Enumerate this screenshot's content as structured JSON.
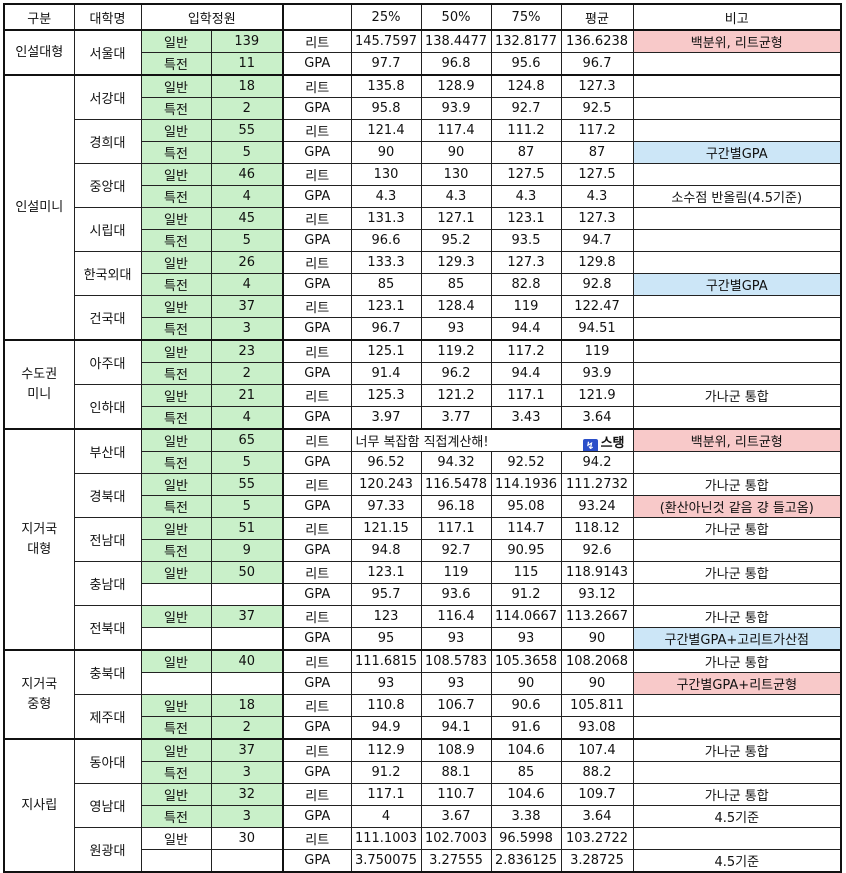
{
  "header": {
    "category": "구분",
    "university": "대학명",
    "quota": "입학정원",
    "blank": "",
    "p25": "25%",
    "p50": "50%",
    "p75": "75%",
    "avg": "평균",
    "note": "비고"
  },
  "colors": {
    "green": "#c9f0c9",
    "pink": "#f8c9c9",
    "blue": "#cce6f7",
    "logo": "#2b4fc9"
  },
  "merged_note": {
    "text": "너무 복잡함 직접계산해!",
    "logo_text": "스탱",
    "logo_icon": "logo-icon"
  },
  "groups": [
    {
      "name": "인설대형",
      "univs": [
        {
          "name": "서울대",
          "rows": [
            [
              "일반",
              "139",
              "리트",
              "145.7597",
              "138.4477",
              "132.8177",
              "136.6238",
              "백분위, 리트균형",
              "pink",
              true
            ],
            [
              "특전",
              "11",
              "GPA",
              "97.7",
              "96.8",
              "95.6",
              "96.7",
              "",
              "",
              true
            ]
          ]
        }
      ]
    },
    {
      "name": "인설미니",
      "univs": [
        {
          "name": "서강대",
          "rows": [
            [
              "일반",
              "18",
              "리트",
              "135.8",
              "128.9",
              "124.8",
              "127.3",
              "",
              "",
              true
            ],
            [
              "특전",
              "2",
              "GPA",
              "95.8",
              "93.9",
              "92.7",
              "92.5",
              "",
              "",
              true
            ]
          ]
        },
        {
          "name": "경희대",
          "rows": [
            [
              "일반",
              "55",
              "리트",
              "121.4",
              "117.4",
              "111.2",
              "117.2",
              "",
              "",
              true
            ],
            [
              "특전",
              "5",
              "GPA",
              "90",
              "90",
              "87",
              "87",
              "구간별GPA",
              "blue",
              true
            ]
          ]
        },
        {
          "name": "중앙대",
          "rows": [
            [
              "일반",
              "46",
              "리트",
              "130",
              "130",
              "127.5",
              "127.5",
              "",
              "",
              true
            ],
            [
              "특전",
              "4",
              "GPA",
              "4.3",
              "4.3",
              "4.3",
              "4.3",
              "소수점 반올림(4.5기준)",
              "",
              true
            ]
          ]
        },
        {
          "name": "시립대",
          "rows": [
            [
              "일반",
              "45",
              "리트",
              "131.3",
              "127.1",
              "123.1",
              "127.3",
              "",
              "",
              true
            ],
            [
              "특전",
              "5",
              "GPA",
              "96.6",
              "95.2",
              "93.5",
              "94.7",
              "",
              "",
              true
            ]
          ]
        },
        {
          "name": "한국외대",
          "rows": [
            [
              "일반",
              "26",
              "리트",
              "133.3",
              "129.3",
              "127.3",
              "129.8",
              "",
              "",
              true
            ],
            [
              "특전",
              "4",
              "GPA",
              "85",
              "85",
              "82.8",
              "92.8",
              "구간별GPA",
              "blue",
              true
            ]
          ]
        },
        {
          "name": "건국대",
          "rows": [
            [
              "일반",
              "37",
              "리트",
              "123.1",
              "128.4",
              "119",
              "122.47",
              "",
              "",
              true
            ],
            [
              "특전",
              "3",
              "GPA",
              "96.7",
              "93",
              "94.4",
              "94.51",
              "",
              "",
              true
            ]
          ]
        }
      ]
    },
    {
      "name": "수도권\n미니",
      "univs": [
        {
          "name": "아주대",
          "rows": [
            [
              "일반",
              "23",
              "리트",
              "125.1",
              "119.2",
              "117.2",
              "119",
              "",
              "",
              true
            ],
            [
              "특전",
              "2",
              "GPA",
              "91.4",
              "96.2",
              "94.4",
              "93.9",
              "",
              "",
              true
            ]
          ]
        },
        {
          "name": "인하대",
          "rows": [
            [
              "일반",
              "21",
              "리트",
              "125.3",
              "121.2",
              "117.1",
              "121.9",
              "가나군 통합",
              "",
              true
            ],
            [
              "특전",
              "4",
              "GPA",
              "3.97",
              "3.77",
              "3.43",
              "3.64",
              "",
              "",
              true
            ]
          ]
        }
      ]
    },
    {
      "name": "지거국\n대형",
      "univs": [
        {
          "name": "부산대",
          "rows": [
            [
              "일반",
              "65",
              "리트",
              "",
              "",
              "",
              "",
              "백분위, 리트균형",
              "pink",
              true,
              "merged"
            ],
            [
              "특전",
              "5",
              "GPA",
              "96.52",
              "94.32",
              "92.52",
              "94.2",
              "",
              "",
              true
            ]
          ]
        },
        {
          "name": "경북대",
          "rows": [
            [
              "일반",
              "55",
              "리트",
              "120.243",
              "116.5478",
              "114.1936",
              "111.2732",
              "가나군 통합",
              "",
              true
            ],
            [
              "특전",
              "5",
              "GPA",
              "97.33",
              "96.18",
              "95.08",
              "93.24",
              "(환산아닌것 같음 걍 들고옴)",
              "pink",
              true
            ]
          ]
        },
        {
          "name": "전남대",
          "rows": [
            [
              "일반",
              "51",
              "리트",
              "121.15",
              "117.1",
              "114.7",
              "118.12",
              "가나군 통합",
              "",
              true
            ],
            [
              "특전",
              "9",
              "GPA",
              "94.8",
              "92.7",
              "90.95",
              "92.6",
              "",
              "",
              true
            ]
          ]
        },
        {
          "name": "충남대",
          "rows": [
            [
              "일반",
              "50",
              "리트",
              "123.1",
              "119",
              "115",
              "118.9143",
              "가나군 통합",
              "",
              true
            ],
            [
              "",
              "",
              "GPA",
              "95.7",
              "93.6",
              "91.2",
              "93.12",
              "",
              "",
              false
            ]
          ]
        },
        {
          "name": "전북대",
          "rows": [
            [
              "일반",
              "37",
              "리트",
              "123",
              "116.4",
              "114.0667",
              "113.2667",
              "가나군 통합",
              "",
              true
            ],
            [
              "",
              "",
              "GPA",
              "95",
              "93",
              "93",
              "90",
              "구간별GPA+고리트가산점",
              "blue",
              false
            ]
          ]
        }
      ]
    },
    {
      "name": "지거국\n중형",
      "univs": [
        {
          "name": "충북대",
          "rows": [
            [
              "일반",
              "40",
              "리트",
              "111.6815",
              "108.5783",
              "105.3658",
              "108.2068",
              "가나군 통합",
              "",
              true
            ],
            [
              "",
              "",
              "GPA",
              "93",
              "93",
              "90",
              "90",
              "구간별GPA+리트균형",
              "pink",
              false
            ]
          ]
        },
        {
          "name": "제주대",
          "rows": [
            [
              "일반",
              "18",
              "리트",
              "110.8",
              "106.7",
              "90.6",
              "105.811",
              "",
              "",
              true
            ],
            [
              "특전",
              "2",
              "GPA",
              "94.9",
              "94.1",
              "91.6",
              "93.08",
              "",
              "",
              true
            ]
          ]
        }
      ]
    },
    {
      "name": "지사립",
      "univs": [
        {
          "name": "동아대",
          "rows": [
            [
              "일반",
              "37",
              "리트",
              "112.9",
              "108.9",
              "104.6",
              "107.4",
              "가나군 통합",
              "",
              true
            ],
            [
              "특전",
              "3",
              "GPA",
              "91.2",
              "88.1",
              "85",
              "88.2",
              "",
              "",
              true
            ]
          ]
        },
        {
          "name": "영남대",
          "rows": [
            [
              "일반",
              "32",
              "리트",
              "117.1",
              "110.7",
              "104.6",
              "109.7",
              "가나군 통합",
              "",
              true
            ],
            [
              "특전",
              "3",
              "GPA",
              "4",
              "3.67",
              "3.38",
              "3.64",
              "4.5기준",
              "",
              true
            ]
          ]
        },
        {
          "name": "원광대",
          "rows": [
            [
              "일반",
              "30",
              "리트",
              "111.1003",
              "102.7003",
              "96.5998",
              "103.2722",
              "",
              "",
              false
            ],
            [
              "",
              "",
              "GPA",
              "3.750075",
              "3.27555",
              "2.836125",
              "3.28725",
              "4.5기준",
              "",
              false
            ]
          ]
        }
      ]
    }
  ]
}
